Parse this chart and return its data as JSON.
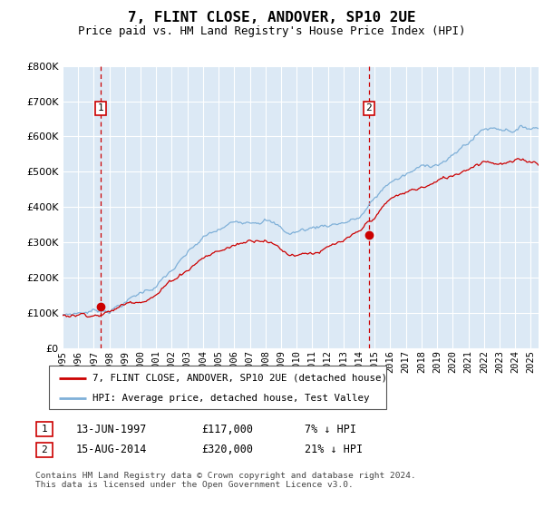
{
  "title": "7, FLINT CLOSE, ANDOVER, SP10 2UE",
  "subtitle": "Price paid vs. HM Land Registry's House Price Index (HPI)",
  "ylim": [
    0,
    800000
  ],
  "yticks": [
    0,
    100000,
    200000,
    300000,
    400000,
    500000,
    600000,
    700000,
    800000
  ],
  "xmin": 1995.0,
  "xmax": 2025.5,
  "background_color": "#dce9f5",
  "grid_color": "#ffffff",
  "red_line_color": "#cc0000",
  "blue_line_color": "#7fb0d8",
  "vline_color": "#cc0000",
  "legend_label_red": "7, FLINT CLOSE, ANDOVER, SP10 2UE (detached house)",
  "legend_label_blue": "HPI: Average price, detached house, Test Valley",
  "transaction_1_date": "13-JUN-1997",
  "transaction_1_price": "£117,000",
  "transaction_1_hpi": "7% ↓ HPI",
  "transaction_1_x": 1997.45,
  "transaction_1_y": 117000,
  "transaction_2_date": "15-AUG-2014",
  "transaction_2_price": "£320,000",
  "transaction_2_hpi": "21% ↓ HPI",
  "transaction_2_x": 2014.62,
  "transaction_2_y": 320000,
  "footer_text": "Contains HM Land Registry data © Crown copyright and database right 2024.\nThis data is licensed under the Open Government Licence v3.0."
}
